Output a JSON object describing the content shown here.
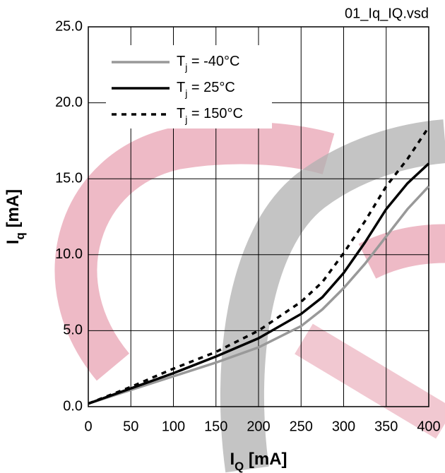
{
  "chart_data": {
    "type": "line",
    "title": "01_Iq_IQ.vsd",
    "x_label": "IQ [mA]",
    "y_label": "Iq [mA]",
    "x": [
      0,
      50,
      100,
      150,
      200,
      250,
      275,
      300,
      325,
      350,
      375,
      400
    ],
    "series": [
      {
        "name": "Tj = -40°C",
        "color": "#999999",
        "line_style": "solid",
        "values": [
          0.2,
          1.1,
          2.0,
          2.9,
          3.9,
          5.3,
          6.4,
          7.8,
          9.4,
          11.2,
          13.0,
          14.5
        ]
      },
      {
        "name": "Tj = 25°C",
        "color": "#000000",
        "line_style": "solid",
        "values": [
          0.2,
          1.2,
          2.2,
          3.3,
          4.5,
          6.1,
          7.2,
          8.8,
          10.8,
          13.0,
          14.7,
          16.0
        ]
      },
      {
        "name": "Tj = 150°C",
        "color": "#000000",
        "line_style": "dotted",
        "values": [
          0.2,
          1.3,
          2.5,
          3.6,
          5.0,
          6.9,
          8.2,
          10.1,
          12.2,
          14.5,
          16.3,
          18.4
        ]
      }
    ],
    "xlim": [
      0,
      400
    ],
    "xticks": [
      0,
      50,
      100,
      150,
      200,
      250,
      300,
      350,
      400
    ],
    "ylim": [
      0,
      25
    ],
    "yticks": [
      {
        "value": 0,
        "label": "0.0"
      },
      {
        "value": 5,
        "label": "5.0"
      },
      {
        "value": 10,
        "label": "10.0"
      },
      {
        "value": 15,
        "label": "15.0"
      },
      {
        "value": 20,
        "label": "20.0"
      },
      {
        "value": 25,
        "label": "25.0"
      }
    ],
    "grid": true,
    "legend": "upper left"
  }
}
